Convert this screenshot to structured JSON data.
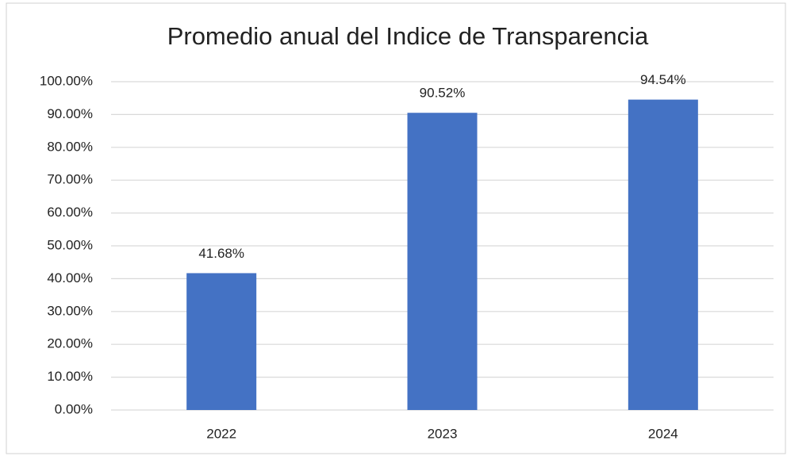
{
  "chart_data": {
    "type": "bar",
    "title": "Promedio anual del Indice de Transparencia",
    "categories": [
      "2022",
      "2023",
      "2024"
    ],
    "values": [
      41.68,
      90.52,
      94.54
    ],
    "value_labels": [
      "41.68%",
      "90.52%",
      "94.54%"
    ],
    "color": "#4472c4",
    "ylim": [
      0,
      100
    ],
    "yticks": [
      {
        "value": 0,
        "label": "0.00%"
      },
      {
        "value": 10,
        "label": "10.00%"
      },
      {
        "value": 20,
        "label": "20.00%"
      },
      {
        "value": 30,
        "label": "30.00%"
      },
      {
        "value": 40,
        "label": "40.00%"
      },
      {
        "value": 50,
        "label": "50.00%"
      },
      {
        "value": 60,
        "label": "60.00%"
      },
      {
        "value": 70,
        "label": "70.00%"
      },
      {
        "value": 80,
        "label": "80.00%"
      },
      {
        "value": 90,
        "label": "90.00%"
      },
      {
        "value": 100,
        "label": "100.00%"
      }
    ],
    "grid": true
  }
}
